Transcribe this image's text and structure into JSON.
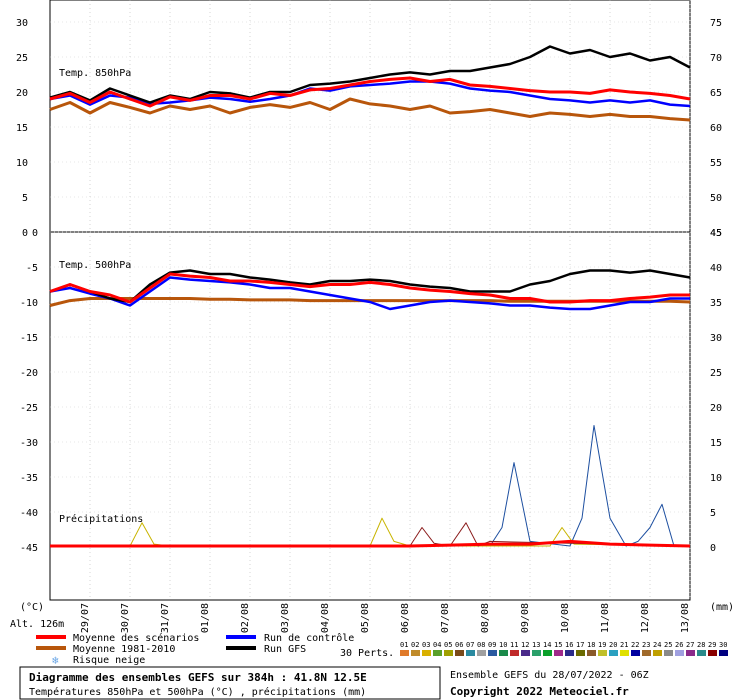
{
  "chart_data": {
    "type": "line",
    "title": "Diagramme des ensembles GEFS sur 384h : 41.8N 12.5E",
    "subtitle": "Températures 850hPa et 500hPa (°C) , précipitations (mm)",
    "run_info": "Ensemble GEFS du 28/07/2022 - 06Z",
    "copyright": "Copyright 2022 Meteociel.fr",
    "altitude": "Alt. 126m",
    "left_unit": "(°C)",
    "right_unit": "(mm)",
    "x_labels": [
      "29/07",
      "30/07",
      "31/07",
      "01/08",
      "02/08",
      "03/08",
      "04/08",
      "05/08",
      "06/08",
      "07/08",
      "08/08",
      "09/08",
      "10/08",
      "11/08",
      "12/08",
      "13/08"
    ],
    "x_days_range": [
      0,
      16
    ],
    "panels": [
      {
        "name": "Temp. 850hPa",
        "ylim": [
          0,
          30
        ],
        "left_ticks": [
          "30",
          "25",
          "20",
          "15",
          "10",
          "5",
          "0"
        ],
        "right_ticks": [
          "75",
          "70",
          "65",
          "60",
          "55",
          "50",
          "45"
        ],
        "series": [
          {
            "name": "Moyenne des scénarios",
            "color": "#ff0000",
            "x": [
              0,
              0.5,
              1,
              1.5,
              2,
              2.5,
              3,
              3.5,
              4,
              4.5,
              5,
              5.5,
              6,
              6.5,
              7,
              7.5,
              8,
              8.5,
              9,
              9.5,
              10,
              10.5,
              11,
              11.5,
              12,
              12.5,
              13,
              13.5,
              14,
              14.5,
              15,
              15.5,
              16
            ],
            "y": [
              19,
              19.8,
              18.5,
              20,
              19,
              18,
              19.3,
              18.8,
              19.5,
              19.5,
              19,
              19.8,
              19.5,
              20.3,
              20.5,
              21,
              21.5,
              21.8,
              22,
              21.5,
              21.8,
              21,
              20.8,
              20.5,
              20.2,
              20,
              20,
              19.8,
              20.3,
              20,
              19.8,
              19.5,
              19
            ]
          },
          {
            "name": "Moyenne 1981-2010",
            "color": "#b8560b",
            "x": [
              0,
              0.5,
              1,
              1.5,
              2,
              2.5,
              3,
              3.5,
              4,
              4.5,
              5,
              5.5,
              6,
              6.5,
              7,
              7.5,
              8,
              8.5,
              9,
              9.5,
              10,
              10.5,
              11,
              11.5,
              12,
              12.5,
              13,
              13.5,
              14,
              14.5,
              15,
              15.5,
              16
            ],
            "y": [
              17.5,
              18.5,
              17,
              18.5,
              17.8,
              17,
              18,
              17.5,
              18,
              17,
              17.8,
              18.2,
              17.8,
              18.5,
              17.5,
              19,
              18.3,
              18,
              17.5,
              18,
              17,
              17.2,
              17.5,
              17,
              16.5,
              17,
              16.8,
              16.5,
              16.8,
              16.5,
              16.5,
              16.2,
              16
            ]
          },
          {
            "name": "Run de contrôle",
            "color": "#0000ff",
            "x": [
              0,
              0.5,
              1,
              1.5,
              2,
              2.5,
              3,
              3.5,
              4,
              4.5,
              5,
              5.5,
              6,
              6.5,
              7,
              7.5,
              8,
              8.5,
              9,
              9.5,
              10,
              10.5,
              11,
              11.5,
              12,
              12.5,
              13,
              13.5,
              14,
              14.5,
              15,
              15.5,
              16
            ],
            "y": [
              19,
              19.5,
              18.2,
              19.5,
              19.2,
              18.3,
              18.5,
              18.8,
              19.2,
              19,
              18.6,
              19,
              19.5,
              20.5,
              20.2,
              20.8,
              21,
              21.2,
              21.5,
              21.5,
              21.2,
              20.5,
              20.2,
              20,
              19.5,
              19,
              18.8,
              18.5,
              18.8,
              18.5,
              18.8,
              18.2,
              18
            ]
          },
          {
            "name": "Run GFS",
            "color": "#000000",
            "x": [
              0,
              0.5,
              1,
              1.5,
              2,
              2.5,
              3,
              3.5,
              4,
              4.5,
              5,
              5.5,
              6,
              6.5,
              7,
              7.5,
              8,
              8.5,
              9,
              9.5,
              10,
              10.5,
              11,
              11.5,
              12,
              12.5,
              13,
              13.5,
              14,
              14.5,
              15,
              15.5,
              16
            ],
            "y": [
              19.2,
              20,
              18.8,
              20.5,
              19.5,
              18.5,
              19.5,
              19,
              20,
              19.8,
              19.2,
              20,
              20,
              21,
              21.2,
              21.5,
              22,
              22.5,
              22.8,
              22.5,
              23,
              23,
              23.5,
              24,
              25,
              26.5,
              25.5,
              26,
              25,
              25.5,
              24.5,
              25,
              23.5
            ]
          }
        ]
      },
      {
        "name": "Temp. 500hPa",
        "ylim": [
          -50,
          0
        ],
        "left_ticks": [
          "0",
          "-5",
          "-10",
          "-15",
          "-20",
          "-25",
          "-30",
          "-35",
          "-40",
          "-45"
        ],
        "right_ticks": [
          "45",
          "40",
          "35",
          "30",
          "25",
          "20",
          "15",
          "10",
          "5",
          "0"
        ],
        "series": [
          {
            "name": "Moyenne des scénarios",
            "color": "#ff0000",
            "x": [
              0,
              0.5,
              1,
              1.5,
              2,
              2.5,
              3,
              3.5,
              4,
              4.5,
              5,
              5.5,
              6,
              6.5,
              7,
              7.5,
              8,
              8.5,
              9,
              9.5,
              10,
              10.5,
              11,
              11.5,
              12,
              12.5,
              13,
              13.5,
              14,
              14.5,
              15,
              15.5,
              16
            ],
            "y": [
              -8.5,
              -7.5,
              -8.5,
              -9,
              -10,
              -8,
              -6,
              -6.3,
              -6.5,
              -7,
              -7,
              -7.2,
              -7.5,
              -7.8,
              -7.5,
              -7.5,
              -7.2,
              -7.5,
              -8,
              -8.3,
              -8.5,
              -8.8,
              -9,
              -9.5,
              -9.5,
              -10,
              -10,
              -9.8,
              -9.8,
              -9.5,
              -9.3,
              -9,
              -9
            ]
          },
          {
            "name": "Moyenne 1981-2010",
            "color": "#b8560b",
            "x": [
              0,
              0.5,
              1,
              1.5,
              2,
              2.5,
              3,
              3.5,
              4,
              4.5,
              5,
              5.5,
              6,
              6.5,
              7,
              7.5,
              8,
              8.5,
              9,
              9.5,
              10,
              10.5,
              11,
              11.5,
              12,
              12.5,
              13,
              13.5,
              14,
              14.5,
              15,
              15.5,
              16
            ],
            "y": [
              -10.5,
              -9.8,
              -9.5,
              -9.5,
              -9.5,
              -9.5,
              -9.5,
              -9.5,
              -9.6,
              -9.6,
              -9.7,
              -9.7,
              -9.7,
              -9.8,
              -9.8,
              -9.8,
              -9.8,
              -9.8,
              -9.8,
              -9.8,
              -9.8,
              -9.8,
              -9.8,
              -9.9,
              -9.9,
              -9.9,
              -9.9,
              -9.9,
              -9.9,
              -9.9,
              -9.9,
              -9.9,
              -10
            ]
          },
          {
            "name": "Run de contrôle",
            "color": "#0000ff",
            "x": [
              0,
              0.5,
              1,
              1.5,
              2,
              2.5,
              3,
              3.5,
              4,
              4.5,
              5,
              5.5,
              6,
              6.5,
              7,
              7.5,
              8,
              8.5,
              9,
              9.5,
              10,
              10.5,
              11,
              11.5,
              12,
              12.5,
              13,
              13.5,
              14,
              14.5,
              15,
              15.5,
              16
            ],
            "y": [
              -8.5,
              -8,
              -8.8,
              -9.5,
              -10.5,
              -8.5,
              -6.5,
              -6.8,
              -7,
              -7.2,
              -7.5,
              -8,
              -8,
              -8.5,
              -9,
              -9.5,
              -10,
              -11,
              -10.5,
              -10,
              -9.8,
              -10,
              -10.2,
              -10.5,
              -10.5,
              -10.8,
              -11,
              -11,
              -10.5,
              -10,
              -10,
              -9.5,
              -9.5
            ]
          },
          {
            "name": "Run GFS",
            "color": "#000000",
            "x": [
              0,
              0.5,
              1,
              1.5,
              2,
              2.5,
              3,
              3.5,
              4,
              4.5,
              5,
              5.5,
              6,
              6.5,
              7,
              7.5,
              8,
              8.5,
              9,
              9.5,
              10,
              10.5,
              11,
              11.5,
              12,
              12.5,
              13,
              13.5,
              14,
              14.5,
              15,
              15.5,
              16
            ],
            "y": [
              -8.5,
              -7.5,
              -8.5,
              -9.5,
              -10,
              -7.5,
              -5.8,
              -5.5,
              -6,
              -6,
              -6.5,
              -6.8,
              -7.2,
              -7.5,
              -7,
              -7,
              -6.8,
              -7,
              -7.5,
              -7.8,
              -8,
              -8.5,
              -8.5,
              -8.5,
              -7.5,
              -7,
              -6,
              -5.5,
              -5.5,
              -5.8,
              -5.5,
              -6,
              -6.5
            ]
          }
        ]
      },
      {
        "name": "Précipitations",
        "ylim": [
          0,
          15
        ],
        "series": [
          {
            "name": "Moyenne des scénarios",
            "color": "#ff0000",
            "x": [
              0,
              1,
              2,
              3,
              4,
              5,
              6,
              7,
              8,
              9,
              10,
              11,
              12,
              13,
              14,
              15,
              16
            ],
            "y": [
              0,
              0,
              0,
              0,
              0,
              0,
              0,
              0,
              0,
              0,
              0.1,
              0.2,
              0.2,
              0.5,
              0.2,
              0.1,
              0
            ]
          },
          {
            "name": "Pert 01",
            "color": "#1d4fa0",
            "x": [
              0,
              11,
              11.3,
              11.6,
              12,
              13,
              13.3,
              13.6,
              14,
              14.4,
              14.7,
              15,
              15.3,
              15.6,
              16
            ],
            "y": [
              0,
              0,
              2,
              9,
              0.5,
              0,
              3,
              13,
              3,
              0,
              0.5,
              2,
              4.5,
              0,
              0
            ]
          },
          {
            "name": "Pert 02",
            "color": "#c8b400",
            "x": [
              0,
              2,
              2.3,
              2.6,
              3,
              8,
              8.3,
              8.6,
              9,
              12.5,
              12.8,
              13.1,
              16
            ],
            "y": [
              0,
              0,
              2.5,
              0.2,
              0,
              0,
              3,
              0.5,
              0,
              0,
              2,
              0.2,
              0
            ]
          },
          {
            "name": "Pert 03",
            "color": "#8b1c1c",
            "x": [
              0,
              9,
              9.3,
              9.6,
              10,
              10.4,
              10.7,
              11,
              16
            ],
            "y": [
              0,
              0,
              2,
              0.3,
              0,
              2.5,
              0,
              0.5,
              0
            ]
          }
        ]
      }
    ],
    "legend": [
      {
        "label": "Moyenne des scénarios",
        "color": "#ff0000"
      },
      {
        "label": "Moyenne 1981-2010",
        "color": "#b8560b"
      },
      {
        "label": "Run de contrôle",
        "color": "#0000ff"
      },
      {
        "label": "Run GFS",
        "color": "#000000"
      },
      {
        "label": "Risque neige",
        "color": "#6aa6e6"
      }
    ],
    "perturbations": {
      "label": "30 Perts.",
      "numbers": [
        "01",
        "02",
        "03",
        "04",
        "05",
        "06",
        "07",
        "08",
        "09",
        "10",
        "11",
        "12",
        "13",
        "14",
        "15",
        "16",
        "17",
        "18",
        "19",
        "20",
        "21",
        "22",
        "23",
        "24",
        "25",
        "26",
        "27",
        "28",
        "29",
        "30"
      ],
      "colors": [
        "#e07a2a",
        "#c08b2a",
        "#d9b000",
        "#5aa02a",
        "#a0a000",
        "#7a4a1a",
        "#2a8aa0",
        "#a0a0a0",
        "#2a5aa0",
        "#1a8a4a",
        "#c02a2a",
        "#4a2a8a",
        "#2aa06a",
        "#0aa02a",
        "#a02a8a",
        "#2a2a8a",
        "#6a6a00",
        "#8a5a2a",
        "#c0c02a",
        "#2aa0c0",
        "#e0e000",
        "#0000a0",
        "#a06a2a",
        "#c0a000",
        "#8a8a8a",
        "#a0a0e0",
        "#8a2a8a",
        "#2a8a8a",
        "#8a0000",
        "#000080"
      ]
    }
  }
}
